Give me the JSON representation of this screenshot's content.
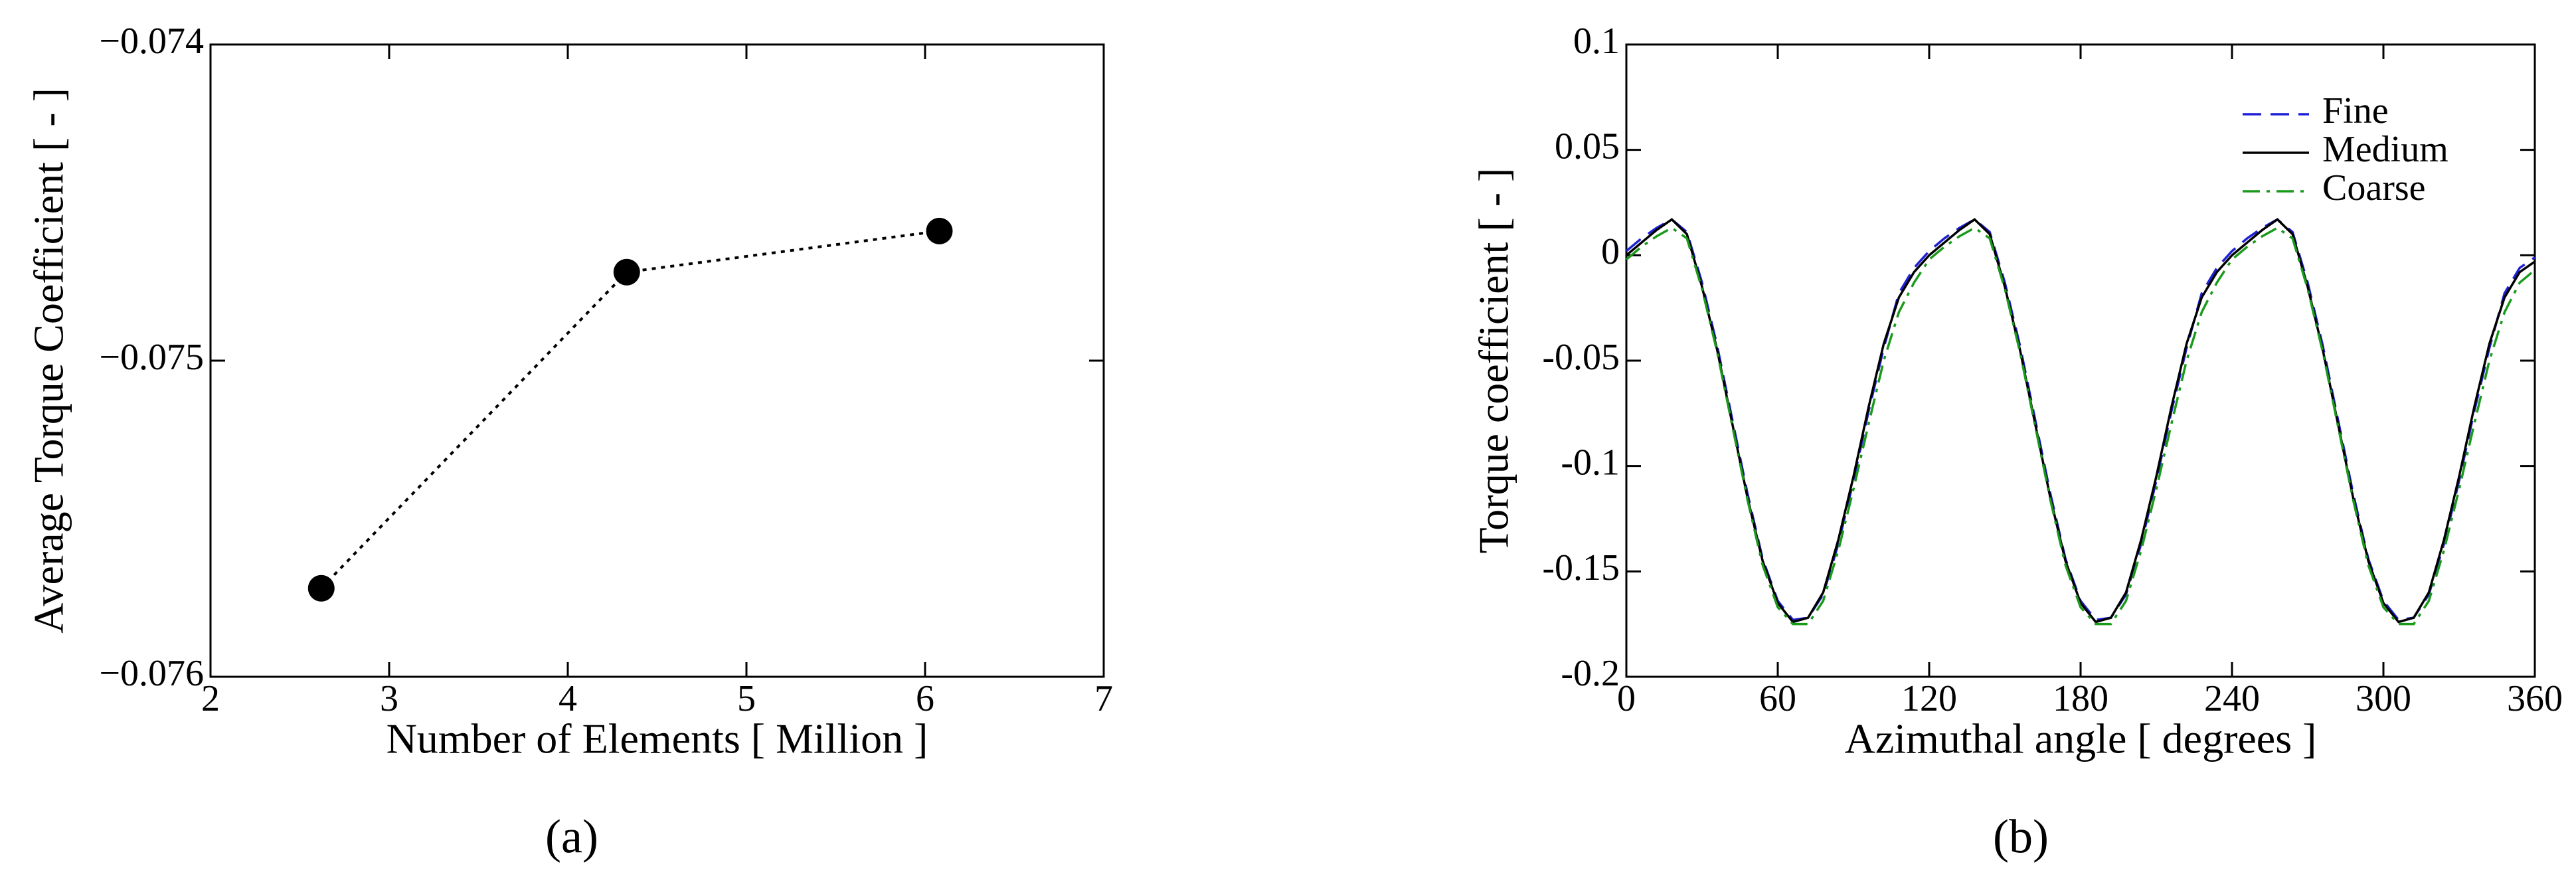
{
  "chart_data": [
    {
      "type": "line",
      "caption": "(a)",
      "xlabel": "Number of Elements [ Million ]",
      "ylabel": "Average Torque Coefficient [ - ]",
      "x": [
        2.62,
        4.33,
        6.08
      ],
      "series": [
        {
          "color": "#000000",
          "dash": "dotted",
          "markers": true,
          "values": [
            -0.07572,
            -0.07472,
            -0.07459
          ]
        }
      ],
      "xlim": [
        2,
        7
      ],
      "xticks": [
        2,
        3,
        4,
        5,
        6,
        7
      ],
      "ylim": [
        -0.076,
        -0.074
      ],
      "yticks": [
        {
          "value": -0.076,
          "label": "−0.076"
        },
        {
          "value": -0.075,
          "label": "−0.075"
        },
        {
          "value": -0.074,
          "label": "−0.074"
        }
      ]
    },
    {
      "type": "line",
      "caption": "(b)",
      "xlabel": "Azimuthal angle [ degrees ]",
      "ylabel": "Torque coefficient [ - ]",
      "legend": "upper right",
      "x": [
        0,
        6,
        12,
        18,
        24,
        30,
        36,
        42,
        48,
        54,
        60,
        66,
        72,
        78,
        84,
        90,
        96,
        102,
        108,
        114,
        120,
        126,
        132,
        138,
        144,
        150,
        156,
        162,
        168,
        174,
        180,
        186,
        192,
        198,
        204,
        210,
        216,
        222,
        228,
        234,
        240,
        246,
        252,
        258,
        264,
        270,
        276,
        282,
        288,
        294,
        300,
        306,
        312,
        318,
        324,
        330,
        336,
        342,
        348,
        354,
        360
      ],
      "series": [
        {
          "name": "Fine",
          "color": "#1f1fd6",
          "dash": "dashed",
          "values": [
            0.002,
            0.008,
            0.013,
            0.017,
            0.011,
            -0.013,
            -0.043,
            -0.078,
            -0.113,
            -0.144,
            -0.164,
            -0.173,
            -0.172,
            -0.161,
            -0.137,
            -0.107,
            -0.074,
            -0.044,
            -0.018,
            -0.006,
            0.002,
            0.008,
            0.013,
            0.017,
            0.011,
            -0.013,
            -0.043,
            -0.078,
            -0.113,
            -0.144,
            -0.164,
            -0.173,
            -0.172,
            -0.161,
            -0.137,
            -0.107,
            -0.074,
            -0.044,
            -0.018,
            -0.006,
            0.002,
            0.008,
            0.013,
            0.017,
            0.011,
            -0.013,
            -0.043,
            -0.078,
            -0.113,
            -0.144,
            -0.164,
            -0.173,
            -0.172,
            -0.161,
            -0.137,
            -0.107,
            -0.074,
            -0.044,
            -0.018,
            -0.006,
            -0.001
          ]
        },
        {
          "name": "Medium",
          "color": "#000000",
          "dash": "solid",
          "values": [
            0.0,
            0.006,
            0.012,
            0.017,
            0.01,
            -0.015,
            -0.045,
            -0.08,
            -0.115,
            -0.145,
            -0.165,
            -0.174,
            -0.172,
            -0.16,
            -0.135,
            -0.105,
            -0.072,
            -0.042,
            -0.02,
            -0.008,
            0.0,
            0.006,
            0.012,
            0.017,
            0.01,
            -0.015,
            -0.045,
            -0.08,
            -0.115,
            -0.145,
            -0.165,
            -0.174,
            -0.172,
            -0.16,
            -0.135,
            -0.105,
            -0.072,
            -0.042,
            -0.02,
            -0.008,
            0.0,
            0.006,
            0.012,
            0.017,
            0.01,
            -0.015,
            -0.045,
            -0.08,
            -0.115,
            -0.145,
            -0.165,
            -0.174,
            -0.172,
            -0.16,
            -0.135,
            -0.105,
            -0.072,
            -0.042,
            -0.02,
            -0.008,
            -0.003
          ]
        },
        {
          "name": "Coarse",
          "color": "#1a9a1a",
          "dash": "dashdot",
          "values": [
            -0.002,
            0.004,
            0.009,
            0.013,
            0.008,
            -0.016,
            -0.046,
            -0.081,
            -0.116,
            -0.147,
            -0.167,
            -0.175,
            -0.175,
            -0.164,
            -0.14,
            -0.111,
            -0.08,
            -0.05,
            -0.027,
            -0.013,
            -0.002,
            0.004,
            0.009,
            0.013,
            0.008,
            -0.016,
            -0.046,
            -0.081,
            -0.116,
            -0.147,
            -0.167,
            -0.175,
            -0.175,
            -0.164,
            -0.14,
            -0.111,
            -0.08,
            -0.05,
            -0.027,
            -0.013,
            -0.002,
            0.004,
            0.009,
            0.013,
            0.008,
            -0.016,
            -0.046,
            -0.081,
            -0.116,
            -0.147,
            -0.167,
            -0.175,
            -0.175,
            -0.164,
            -0.14,
            -0.111,
            -0.08,
            -0.05,
            -0.027,
            -0.013,
            -0.007
          ]
        }
      ],
      "xlim": [
        0,
        360
      ],
      "xticks": [
        0,
        60,
        120,
        180,
        240,
        300,
        360
      ],
      "ylim": [
        -0.2,
        0.1
      ],
      "yticks": [
        -0.2,
        -0.15,
        -0.1,
        -0.05,
        0,
        0.05,
        0.1
      ]
    }
  ]
}
